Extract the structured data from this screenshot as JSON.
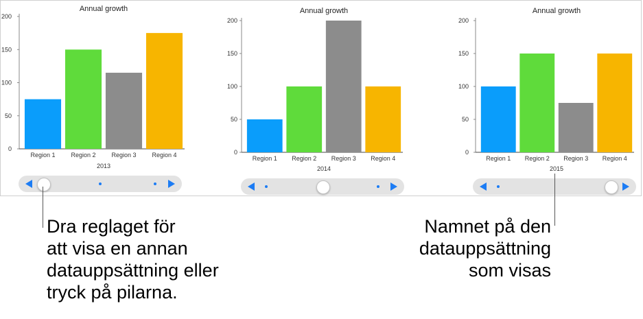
{
  "chart_data": [
    {
      "type": "bar",
      "title": "Annual growth",
      "xlabel": "2013",
      "ylim": [
        0,
        200
      ],
      "yticks": [
        0,
        50,
        100,
        150,
        200
      ],
      "categories": [
        "Region 1",
        "Region 2",
        "Region 3",
        "Region 4"
      ],
      "values": [
        75,
        150,
        115,
        175
      ],
      "colors": [
        "#0a9dfb",
        "#5fdb3b",
        "#8c8c8c",
        "#f7b500"
      ],
      "grid": false
    },
    {
      "type": "bar",
      "title": "Annual growth",
      "xlabel": "2014",
      "ylim": [
        0,
        200
      ],
      "yticks": [
        0,
        50,
        100,
        150,
        200
      ],
      "categories": [
        "Region 1",
        "Region 2",
        "Region 3",
        "Region 4"
      ],
      "values": [
        50,
        100,
        200,
        100
      ],
      "colors": [
        "#0a9dfb",
        "#5fdb3b",
        "#8c8c8c",
        "#f7b500"
      ],
      "grid": false
    },
    {
      "type": "bar",
      "title": "Annual growth",
      "xlabel": "2015",
      "ylim": [
        0,
        200
      ],
      "yticks": [
        0,
        50,
        100,
        150,
        200
      ],
      "categories": [
        "Region 1",
        "Region 2",
        "Region 3",
        "Region 4"
      ],
      "values": [
        100,
        150,
        75,
        150
      ],
      "colors": [
        "#0a9dfb",
        "#5fdb3b",
        "#8c8c8c",
        "#f7b500"
      ],
      "grid": false
    }
  ],
  "sliders": [
    {
      "dataset_index": 0,
      "dataset_count": 3
    },
    {
      "dataset_index": 1,
      "dataset_count": 3
    },
    {
      "dataset_index": 2,
      "dataset_count": 3
    }
  ],
  "callouts": {
    "left": "Dra reglaget för\natt visa en annan\ndatauppsättning eller\ntryck på pilarna.",
    "right": "Namnet på den\ndatauppsättning\nsom visas"
  }
}
